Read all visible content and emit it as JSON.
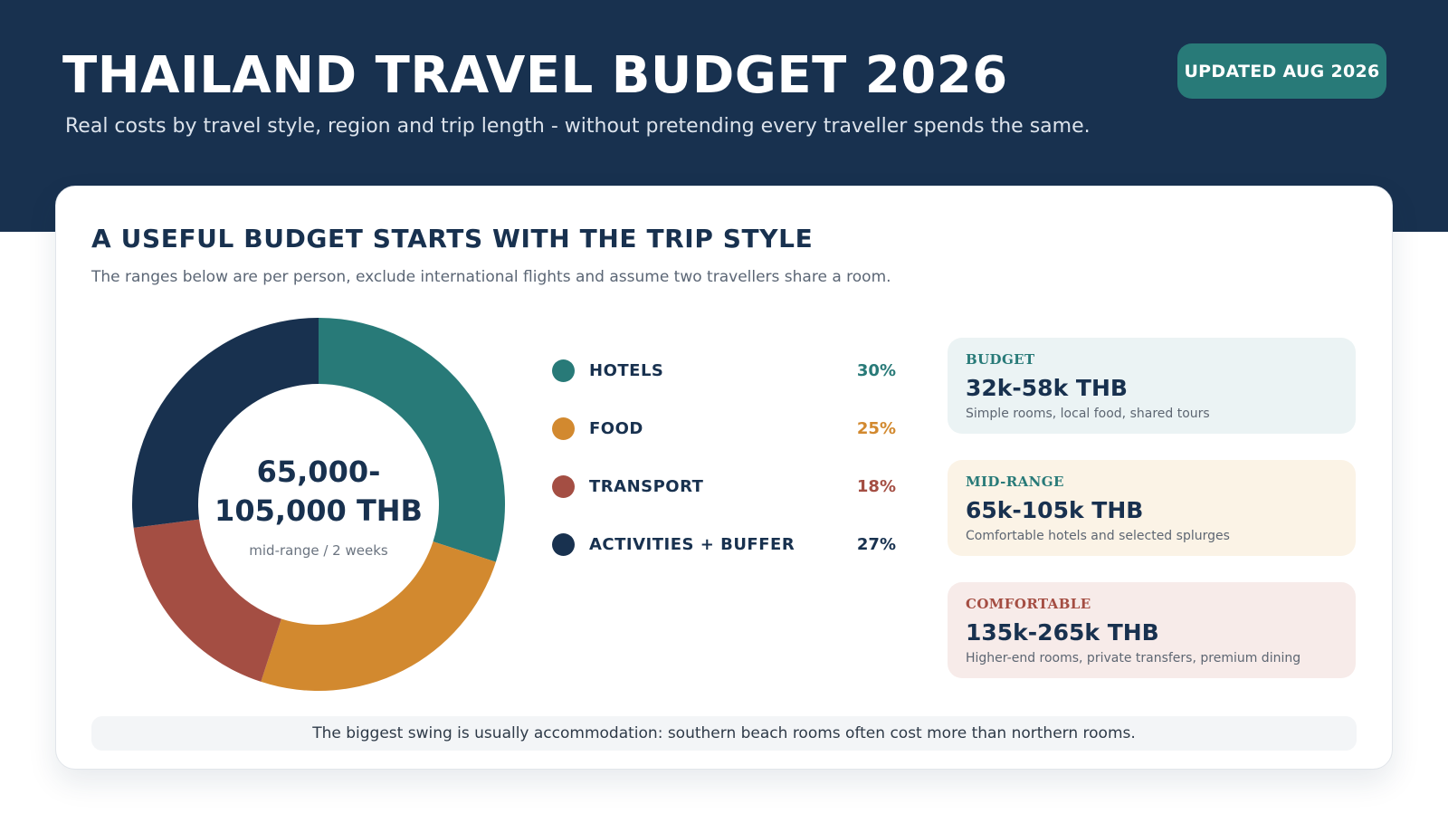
{
  "header": {
    "title": "THAILAND TRAVEL BUDGET 2026",
    "subtitle": "Real costs by travel style, region and trip length - without pretending every traveller spends the same.",
    "badge": "UPDATED AUG 2026"
  },
  "card": {
    "title": "A USEFUL BUDGET STARTS WITH THE TRIP STYLE",
    "subtitle": "The ranges below are per person, exclude international flights and assume two travellers share a room.",
    "center_value_line1": "65,000-",
    "center_value_line2": "105,000 THB",
    "center_caption": "mid-range / 2 weeks",
    "footnote": "The biggest swing is usually accommodation: southern beach rooms often cost more than northern rooms."
  },
  "tiers": [
    {
      "label": "BUDGET",
      "range": "32k-58k THB",
      "description": "Simple rooms, local food, shared tours",
      "bg": "#ebf3f4",
      "label_color": "#287a78"
    },
    {
      "label": "MID-RANGE",
      "range": "65k-105k THB",
      "description": "Comfortable hotels and selected splurges",
      "bg": "#fbf3e6",
      "label_color": "#287a78"
    },
    {
      "label": "COMFORTABLE",
      "range": "135k-265k THB",
      "description": "Higher-end rooms, private transfers, premium dining",
      "bg": "#f7ebe9",
      "label_color": "#a44d42"
    }
  ],
  "chart_data": {
    "type": "pie",
    "categories": [
      "HOTELS",
      "FOOD",
      "TRANSPORT",
      "ACTIVITIES + BUFFER"
    ],
    "values": [
      30,
      25,
      18,
      27
    ],
    "value_labels": [
      "30%",
      "25%",
      "18%",
      "27%"
    ],
    "colors": [
      "#287a78",
      "#d2892f",
      "#a44e43",
      "#18314f"
    ],
    "label_colors": [
      "#287a78",
      "#d2892f",
      "#a44e43",
      "#18314f"
    ],
    "donut": true,
    "legend": "right"
  }
}
